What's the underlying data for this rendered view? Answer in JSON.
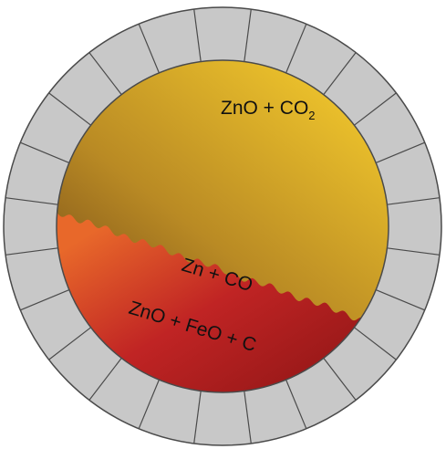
{
  "diagram": {
    "labels": {
      "upper_gas": {
        "main": "ZnO + CO",
        "subscript": "2"
      },
      "interface": "Zn + CO",
      "lower_charge": "ZnO + FeO + C"
    },
    "colors": {
      "refractory_brick": "#c8c8c8",
      "brick_outline": "#4a4a4a",
      "gas_dark": "#6e4417",
      "gas_mid": "#b98a24",
      "gas_light": "#f0c62c",
      "charge_orange": "#e8682a",
      "charge_red": "#c02424",
      "charge_dark": "#9e1a1a"
    },
    "refractory_segments": 24
  }
}
